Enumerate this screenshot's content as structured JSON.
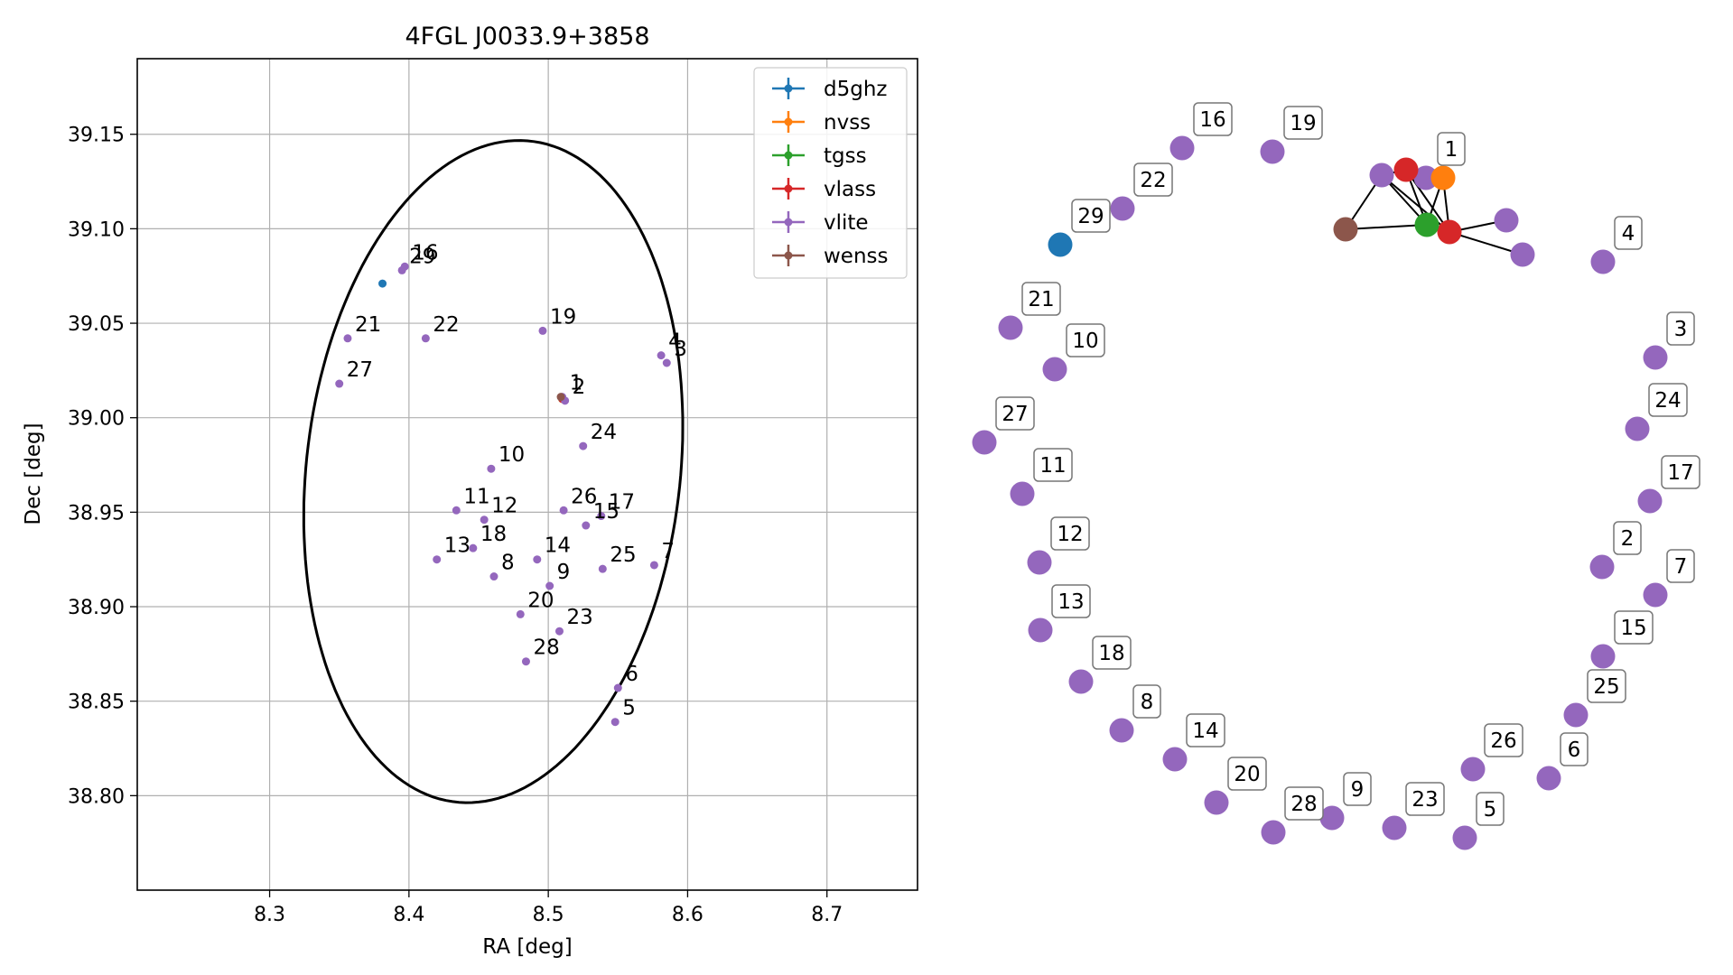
{
  "chart_data": [
    {
      "type": "scatter",
      "title": "4FGL J0033.9+3858",
      "xlabel": "RA [deg]",
      "ylabel": "Dec [deg]",
      "xlim": [
        8.205,
        8.765
      ],
      "ylim": [
        38.75,
        39.19
      ],
      "xticks": [
        8.3,
        8.4,
        8.5,
        8.6,
        8.7
      ],
      "yticks": [
        38.8,
        38.85,
        38.9,
        38.95,
        39.0,
        39.05,
        39.1,
        39.15
      ],
      "xtick_labels": [
        "8.3",
        "8.4",
        "8.5",
        "8.6",
        "8.7"
      ],
      "ytick_labels": [
        "38.80",
        "38.85",
        "38.90",
        "38.95",
        "39.00",
        "39.05",
        "39.10",
        "39.15"
      ],
      "grid": true,
      "legend_position": "top-right",
      "ellipse": {
        "center": [
          8.4605,
          38.9715
        ],
        "semi_axis_a": 0.133,
        "semi_axis_b": 0.1775,
        "angle_deg": -14,
        "color": "#000000"
      },
      "series": [
        {
          "name": "d5ghz",
          "color": "#1f77b4",
          "points": [
            {
              "x": 8.381,
              "y": 39.071,
              "label": ""
            }
          ]
        },
        {
          "name": "nvss",
          "color": "#ff7f0e",
          "points": [
            {
              "x": 8.51,
              "y": 39.01,
              "label": ""
            }
          ]
        },
        {
          "name": "tgss",
          "color": "#2ca02c",
          "points": [
            {
              "x": 8.51,
              "y": 39.01,
              "label": ""
            }
          ]
        },
        {
          "name": "vlass",
          "color": "#d62728",
          "points": [
            {
              "x": 8.51,
              "y": 39.01,
              "label": ""
            }
          ]
        },
        {
          "name": "vlite",
          "color": "#9467bd",
          "points": [
            {
              "x": 8.51,
              "y": 39.011,
              "label": "1"
            },
            {
              "x": 8.512,
              "y": 39.009,
              "label": "2"
            },
            {
              "x": 8.585,
              "y": 39.029,
              "label": "3"
            },
            {
              "x": 8.581,
              "y": 39.033,
              "label": "4"
            },
            {
              "x": 8.548,
              "y": 38.839,
              "label": "5"
            },
            {
              "x": 8.55,
              "y": 38.857,
              "label": "6"
            },
            {
              "x": 8.576,
              "y": 38.922,
              "label": "7"
            },
            {
              "x": 8.461,
              "y": 38.916,
              "label": "8"
            },
            {
              "x": 8.501,
              "y": 38.911,
              "label": "9"
            },
            {
              "x": 8.459,
              "y": 38.973,
              "label": "10"
            },
            {
              "x": 8.434,
              "y": 38.951,
              "label": "11"
            },
            {
              "x": 8.454,
              "y": 38.946,
              "label": "12"
            },
            {
              "x": 8.42,
              "y": 38.925,
              "label": "13"
            },
            {
              "x": 8.492,
              "y": 38.925,
              "label": "14"
            },
            {
              "x": 8.527,
              "y": 38.943,
              "label": "15"
            },
            {
              "x": 8.397,
              "y": 39.08,
              "label": "16"
            },
            {
              "x": 8.538,
              "y": 38.948,
              "label": "17"
            },
            {
              "x": 8.446,
              "y": 38.931,
              "label": "18"
            },
            {
              "x": 8.496,
              "y": 39.046,
              "label": "19"
            },
            {
              "x": 8.48,
              "y": 38.896,
              "label": "20"
            },
            {
              "x": 8.356,
              "y": 39.042,
              "label": "21"
            },
            {
              "x": 8.412,
              "y": 39.042,
              "label": "22"
            },
            {
              "x": 8.508,
              "y": 38.887,
              "label": "23"
            },
            {
              "x": 8.525,
              "y": 38.985,
              "label": "24"
            },
            {
              "x": 8.539,
              "y": 38.92,
              "label": "25"
            },
            {
              "x": 8.511,
              "y": 38.951,
              "label": "26"
            },
            {
              "x": 8.35,
              "y": 39.018,
              "label": "27"
            },
            {
              "x": 8.484,
              "y": 38.871,
              "label": "28"
            },
            {
              "x": 8.395,
              "y": 39.078,
              "label": "29"
            }
          ]
        },
        {
          "name": "wenss",
          "color": "#8c564b",
          "points": [
            {
              "x": 8.509,
              "y": 39.011,
              "label": ""
            }
          ]
        }
      ]
    },
    {
      "type": "network",
      "nodes": [
        {
          "id": "n1",
          "label": "1",
          "color": "#9467bd"
        },
        {
          "id": "n2",
          "label": "2",
          "color": "#9467bd"
        },
        {
          "id": "n3",
          "label": "3",
          "color": "#9467bd"
        },
        {
          "id": "n4",
          "label": "4",
          "color": "#9467bd"
        },
        {
          "id": "n5",
          "label": "5",
          "color": "#9467bd"
        },
        {
          "id": "n6",
          "label": "6",
          "color": "#9467bd"
        },
        {
          "id": "n7",
          "label": "7",
          "color": "#9467bd"
        },
        {
          "id": "n8",
          "label": "8",
          "color": "#9467bd"
        },
        {
          "id": "n9",
          "label": "9",
          "color": "#9467bd"
        },
        {
          "id": "n10",
          "label": "10",
          "color": "#9467bd"
        },
        {
          "id": "n11",
          "label": "11",
          "color": "#9467bd"
        },
        {
          "id": "n12",
          "label": "12",
          "color": "#9467bd"
        },
        {
          "id": "n13",
          "label": "13",
          "color": "#9467bd"
        },
        {
          "id": "n14",
          "label": "14",
          "color": "#9467bd"
        },
        {
          "id": "n15",
          "label": "15",
          "color": "#9467bd"
        },
        {
          "id": "n16",
          "label": "16",
          "color": "#9467bd"
        },
        {
          "id": "n17",
          "label": "17",
          "color": "#9467bd"
        },
        {
          "id": "n18",
          "label": "18",
          "color": "#9467bd"
        },
        {
          "id": "n19",
          "label": "19",
          "color": "#9467bd"
        },
        {
          "id": "n20",
          "label": "20",
          "color": "#9467bd"
        },
        {
          "id": "n21",
          "label": "21",
          "color": "#9467bd"
        },
        {
          "id": "n22",
          "label": "22",
          "color": "#9467bd"
        },
        {
          "id": "n23",
          "label": "23",
          "color": "#9467bd"
        },
        {
          "id": "n24",
          "label": "24",
          "color": "#9467bd"
        },
        {
          "id": "n25",
          "label": "25",
          "color": "#9467bd"
        },
        {
          "id": "n26",
          "label": "26",
          "color": "#9467bd"
        },
        {
          "id": "n27",
          "label": "27",
          "color": "#9467bd"
        },
        {
          "id": "n28",
          "label": "28",
          "color": "#9467bd"
        },
        {
          "id": "n29",
          "label": "29",
          "color": "#1f77b4"
        },
        {
          "id": "v1",
          "label": "",
          "color": "#d62728"
        },
        {
          "id": "v2",
          "label": "",
          "color": "#d62728"
        },
        {
          "id": "nv",
          "label": "",
          "color": "#ff7f0e"
        },
        {
          "id": "tg",
          "label": "",
          "color": "#2ca02c"
        },
        {
          "id": "we",
          "label": "",
          "color": "#8c564b"
        },
        {
          "id": "p1",
          "label": "",
          "color": "#9467bd"
        },
        {
          "id": "p2",
          "label": "",
          "color": "#9467bd"
        },
        {
          "id": "p3",
          "label": "",
          "color": "#9467bd"
        }
      ],
      "edges": [
        [
          "we",
          "p1"
        ],
        [
          "we",
          "tg"
        ],
        [
          "p1",
          "v1"
        ],
        [
          "p1",
          "tg"
        ],
        [
          "p1",
          "v2"
        ],
        [
          "v1",
          "nv"
        ],
        [
          "v1",
          "tg"
        ],
        [
          "v1",
          "v2"
        ],
        [
          "nv",
          "tg"
        ],
        [
          "nv",
          "v2"
        ],
        [
          "tg",
          "v2"
        ],
        [
          "v2",
          "p2"
        ],
        [
          "v2",
          "p3"
        ]
      ]
    }
  ]
}
